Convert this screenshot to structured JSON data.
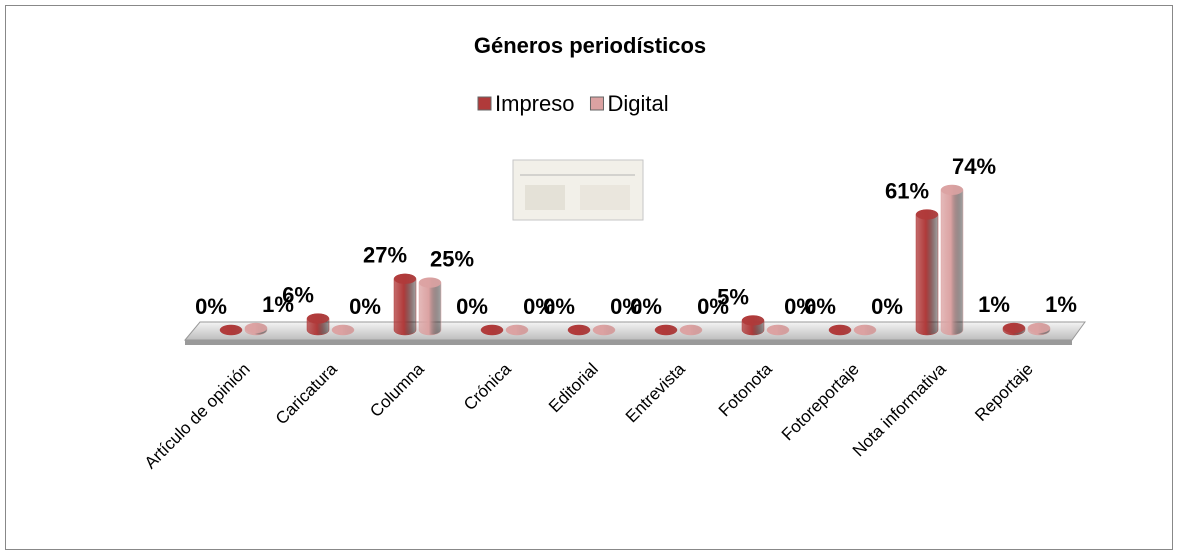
{
  "chart_data": {
    "type": "bar",
    "title": "Géneros periodísticos",
    "categories": [
      "Artículo de opinión",
      "Caricatura",
      "Columna",
      "Crónica",
      "Editorial",
      "Entrevista",
      "Fotonota",
      "Fotoreportaje",
      "Nota informativa",
      "Reportaje"
    ],
    "series": [
      {
        "name": "Impreso",
        "color": "#b03a3a",
        "values": [
          0,
          6,
          27,
          0,
          0,
          0,
          5,
          0,
          61,
          1
        ],
        "value_labels": [
          "0%",
          "6%",
          "27%",
          "0%",
          "0%",
          "0%",
          "5%",
          "0%",
          "61%",
          "1%"
        ]
      },
      {
        "name": "Digital",
        "color": "#dba2a2",
        "values": [
          1,
          0,
          25,
          0,
          0,
          0,
          0,
          0,
          74,
          1
        ],
        "value_labels": [
          "1%",
          "0%",
          "25%",
          "0%",
          "0%",
          "0%",
          "0%",
          "0%",
          "74%",
          "1%"
        ]
      }
    ],
    "legend": "top"
  }
}
